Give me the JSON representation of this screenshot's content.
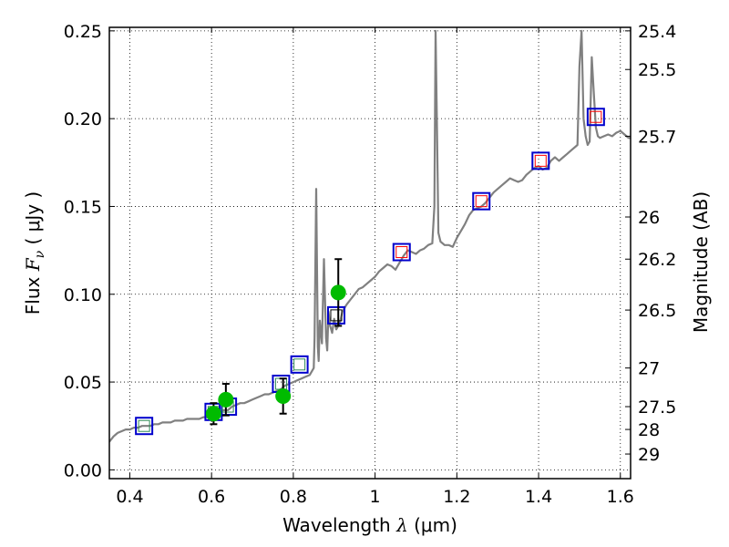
{
  "chart_data": {
    "type": "scatter",
    "xlabel": "Wavelength  λ (μm)",
    "ylabel": "Flux  F_ν  ( μJy )",
    "ylabel_parts": {
      "prefix": "Flux  ",
      "symbol": "F",
      "subscript": "ν",
      "unit": "  ( μJy )"
    },
    "xlabel_parts": {
      "prefix": "Wavelength  ",
      "symbol": "λ",
      "unit": " (μm)"
    },
    "y2label": "Magnitude (AB)",
    "xlim": [
      0.35,
      1.625
    ],
    "ylim": [
      -0.005,
      0.252
    ],
    "grid": true,
    "x_ticks": [
      0.4,
      0.6,
      0.8,
      1.0,
      1.2,
      1.4,
      1.6
    ],
    "x_tick_labels": [
      "0.4",
      "0.6",
      "0.8",
      "1",
      "1.2",
      "1.4",
      "1.6"
    ],
    "y_ticks": [
      0.0,
      0.05,
      0.1,
      0.15,
      0.2,
      0.25
    ],
    "y_tick_labels": [
      "0.00",
      "0.05",
      "0.10",
      "0.15",
      "0.20",
      "0.25"
    ],
    "y2_ticks": [
      {
        "label": "25.4",
        "flux": 0.25
      },
      {
        "label": "25.5",
        "flux": 0.228
      },
      {
        "label": "25.7",
        "flux": 0.19
      },
      {
        "label": "26",
        "flux": 0.144
      },
      {
        "label": "26.2",
        "flux": 0.12
      },
      {
        "label": "26.5",
        "flux": 0.091
      },
      {
        "label": "27",
        "flux": 0.058
      },
      {
        "label": "27.5",
        "flux": 0.036
      },
      {
        "label": "28",
        "flux": 0.023
      },
      {
        "label": "29",
        "flux": 0.009
      }
    ],
    "series": [
      {
        "name": "model spectrum",
        "style": "line",
        "color": "#808080",
        "x": [
          0.35,
          0.36,
          0.37,
          0.38,
          0.39,
          0.4,
          0.41,
          0.42,
          0.43,
          0.44,
          0.45,
          0.46,
          0.47,
          0.48,
          0.49,
          0.5,
          0.51,
          0.52,
          0.53,
          0.54,
          0.55,
          0.56,
          0.57,
          0.58,
          0.59,
          0.6,
          0.61,
          0.62,
          0.63,
          0.64,
          0.65,
          0.66,
          0.67,
          0.68,
          0.69,
          0.7,
          0.71,
          0.72,
          0.73,
          0.74,
          0.75,
          0.76,
          0.77,
          0.78,
          0.79,
          0.8,
          0.81,
          0.82,
          0.83,
          0.84,
          0.85,
          0.852,
          0.856,
          0.86,
          0.862,
          0.865,
          0.87,
          0.875,
          0.88,
          0.883,
          0.886,
          0.89,
          0.895,
          0.9,
          0.905,
          0.91,
          0.915,
          0.92,
          0.93,
          0.94,
          0.95,
          0.96,
          0.97,
          0.98,
          0.99,
          1.0,
          1.01,
          1.02,
          1.03,
          1.04,
          1.05,
          1.06,
          1.07,
          1.08,
          1.09,
          1.1,
          1.11,
          1.12,
          1.13,
          1.14,
          1.145,
          1.148,
          1.151,
          1.155,
          1.16,
          1.17,
          1.18,
          1.19,
          1.2,
          1.21,
          1.22,
          1.23,
          1.24,
          1.25,
          1.26,
          1.27,
          1.28,
          1.29,
          1.3,
          1.31,
          1.32,
          1.33,
          1.34,
          1.35,
          1.36,
          1.37,
          1.38,
          1.39,
          1.4,
          1.41,
          1.42,
          1.43,
          1.44,
          1.45,
          1.46,
          1.47,
          1.48,
          1.49,
          1.495,
          1.5,
          1.505,
          1.51,
          1.515,
          1.52,
          1.525,
          1.53,
          1.535,
          1.54,
          1.545,
          1.55,
          1.56,
          1.57,
          1.58,
          1.59,
          1.6,
          1.61,
          1.62,
          1.625
        ],
        "y": [
          0.016,
          0.019,
          0.021,
          0.022,
          0.023,
          0.023,
          0.024,
          0.024,
          0.025,
          0.025,
          0.025,
          0.026,
          0.026,
          0.027,
          0.027,
          0.027,
          0.028,
          0.028,
          0.028,
          0.029,
          0.029,
          0.029,
          0.029,
          0.03,
          0.03,
          0.031,
          0.032,
          0.033,
          0.034,
          0.034,
          0.036,
          0.037,
          0.038,
          0.038,
          0.039,
          0.04,
          0.041,
          0.042,
          0.043,
          0.043,
          0.044,
          0.045,
          0.046,
          0.048,
          0.049,
          0.05,
          0.051,
          0.052,
          0.053,
          0.054,
          0.058,
          0.075,
          0.16,
          0.07,
          0.062,
          0.085,
          0.072,
          0.12,
          0.075,
          0.068,
          0.09,
          0.082,
          0.078,
          0.086,
          0.08,
          0.082,
          0.085,
          0.09,
          0.094,
          0.097,
          0.1,
          0.103,
          0.104,
          0.106,
          0.108,
          0.11,
          0.113,
          0.115,
          0.117,
          0.116,
          0.114,
          0.118,
          0.122,
          0.125,
          0.124,
          0.123,
          0.125,
          0.126,
          0.128,
          0.129,
          0.15,
          0.25,
          0.2,
          0.135,
          0.13,
          0.128,
          0.128,
          0.127,
          0.132,
          0.136,
          0.14,
          0.145,
          0.148,
          0.149,
          0.15,
          0.152,
          0.155,
          0.158,
          0.16,
          0.162,
          0.164,
          0.166,
          0.165,
          0.164,
          0.165,
          0.168,
          0.17,
          0.172,
          0.173,
          0.171,
          0.172,
          0.176,
          0.178,
          0.176,
          0.178,
          0.18,
          0.182,
          0.184,
          0.185,
          0.23,
          0.25,
          0.2,
          0.19,
          0.185,
          0.187,
          0.235,
          0.215,
          0.195,
          0.19,
          0.189,
          0.19,
          0.191,
          0.19,
          0.192,
          0.193,
          0.191,
          0.189,
          0.189
        ]
      },
      {
        "name": "model photometry (blue boxes)",
        "style": "square",
        "color": "#0000cc",
        "x": [
          0.435,
          0.605,
          0.64,
          0.77,
          0.815,
          0.905,
          1.065,
          1.26,
          1.405,
          1.54
        ],
        "y": [
          0.025,
          0.033,
          0.036,
          0.049,
          0.06,
          0.088,
          0.124,
          0.153,
          0.176,
          0.201
        ]
      },
      {
        "name": "inner colored boxes",
        "style": "inner-square",
        "colors": [
          "#2e8b57",
          "#2e8b57",
          "#2e8b57",
          "#2e8b57",
          "#2e8b57",
          "#000000",
          "#ff0000",
          "#ff0000",
          "#ff0000",
          "#ff0000"
        ],
        "x": [
          0.435,
          0.605,
          0.64,
          0.77,
          0.815,
          0.905,
          1.065,
          1.26,
          1.405,
          1.54
        ],
        "y": [
          0.025,
          0.033,
          0.036,
          0.049,
          0.06,
          0.088,
          0.124,
          0.153,
          0.176,
          0.201
        ]
      },
      {
        "name": "observed photometry",
        "style": "circle-errorbar",
        "color": "#00bb00",
        "x": [
          0.605,
          0.635,
          0.775,
          0.91
        ],
        "y": [
          0.032,
          0.04,
          0.042,
          0.101
        ],
        "yerr": [
          0.006,
          0.009,
          0.01,
          0.019
        ]
      }
    ]
  }
}
